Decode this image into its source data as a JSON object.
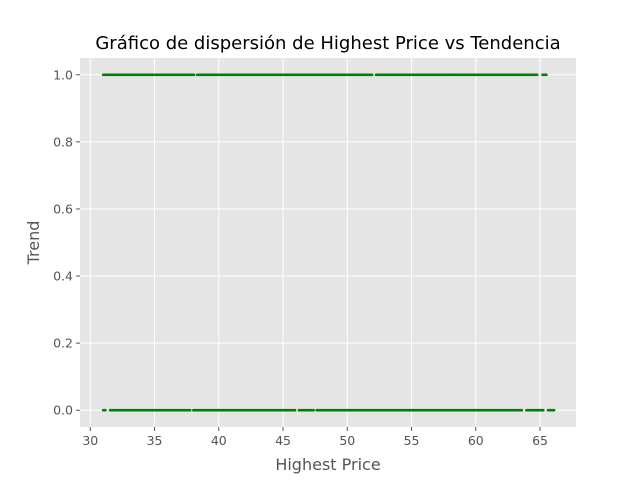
{
  "chart_data": {
    "type": "scatter",
    "title": "Gráfico de dispersión de Highest Price vs Tendencia",
    "xlabel": "Highest Price",
    "ylabel": "Trend",
    "xlim": [
      29.2,
      67.8
    ],
    "ylim": [
      -0.05,
      1.05
    ],
    "xticks": [
      30,
      35,
      40,
      45,
      50,
      55,
      60,
      65
    ],
    "yticks": [
      0.0,
      0.2,
      0.4,
      0.6,
      0.8,
      1.0
    ],
    "xtick_labels": [
      "30",
      "35",
      "40",
      "45",
      "50",
      "55",
      "60",
      "65"
    ],
    "ytick_labels": [
      "0.0",
      "0.2",
      "0.4",
      "0.6",
      "0.8",
      "1.0"
    ],
    "grid": true,
    "style": "ggplot",
    "marker_color": "#008000",
    "background_color": "#e5e5e5",
    "series": [
      {
        "y": 1,
        "x_range": [
          31.0,
          65.5
        ],
        "gaps": [
          [
            38.1,
            38.3
          ],
          [
            52.0,
            52.2
          ],
          [
            64.8,
            65.2
          ]
        ]
      },
      {
        "y": 0,
        "x_range": [
          31.0,
          66.1
        ],
        "gaps": [
          [
            31.2,
            31.5
          ],
          [
            37.8,
            38.0
          ],
          [
            46.0,
            46.2
          ],
          [
            47.4,
            47.6
          ],
          [
            63.6,
            63.9
          ],
          [
            65.3,
            65.6
          ]
        ]
      }
    ]
  }
}
